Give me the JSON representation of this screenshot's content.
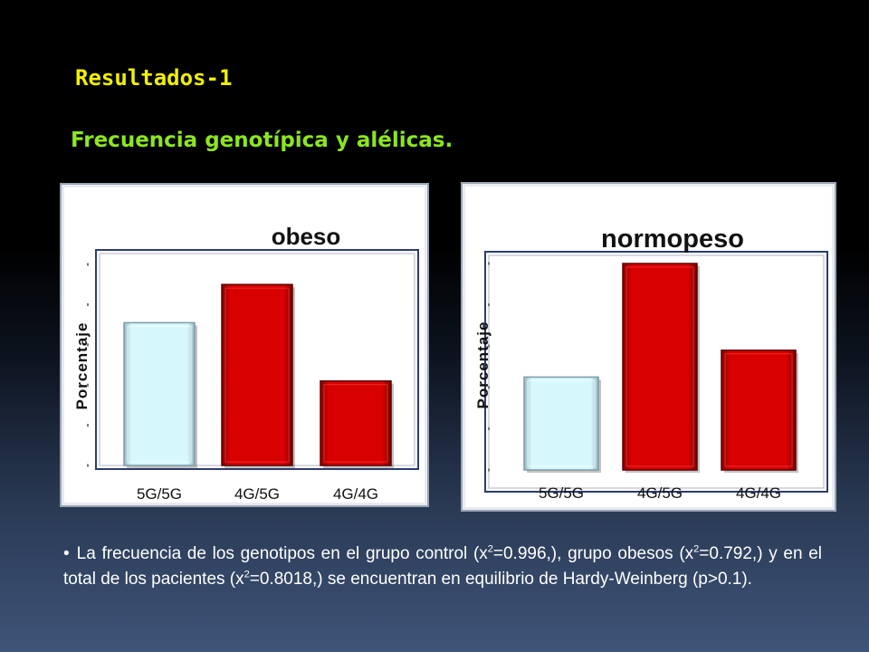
{
  "slide": {
    "title": "Resultados-1",
    "subtitle": "Frecuencia genotípica y alélicas.",
    "body": {
      "bullet": "•",
      "part1": "La frecuencia de los genotipos en el grupo control (x",
      "sup1": "2",
      "part2": "=0.996,), grupo obesos (x",
      "sup2": "2",
      "part3": "=0.792,) y en el total de  los pacientes (x",
      "sup3": "2",
      "part4": "=0.8018,)  se encuentran en equilibrio de Hardy-Weinberg (p>0.1)."
    }
  },
  "colors": {
    "title": "#f0f000",
    "subtitle": "#8ce61e",
    "bar_light": "#c8f4fa",
    "bar_red": "#d40000",
    "plot_border": "#2c3d6e"
  },
  "chart_data": [
    {
      "type": "bar",
      "title": "obeso",
      "ylabel": "Porcentaje",
      "xlabel": "",
      "categories": [
        "5G/5G",
        "4G/5G",
        "4G/4G"
      ],
      "values": [
        35.5,
        45,
        21
      ],
      "bar_colors": [
        "#c8f4fa",
        "#d40000",
        "#d40000"
      ],
      "ylim": [
        0,
        50
      ],
      "yticks": [
        0,
        10,
        20,
        30,
        40,
        50
      ],
      "ytick_labels_legible": false,
      "grid": false,
      "legend": "none"
    },
    {
      "type": "bar",
      "title": "normopeso",
      "ylabel": "Porcentaje",
      "xlabel": "",
      "categories": [
        "5G/5G",
        "4G/5G",
        "4G/4G"
      ],
      "values": [
        22.5,
        50,
        29
      ],
      "bar_colors": [
        "#c8f4fa",
        "#d40000",
        "#d40000"
      ],
      "ylim": [
        0,
        50
      ],
      "yticks": [
        0,
        10,
        20,
        30,
        40,
        50
      ],
      "ytick_labels_legible": false,
      "grid": false,
      "legend": "none"
    }
  ]
}
